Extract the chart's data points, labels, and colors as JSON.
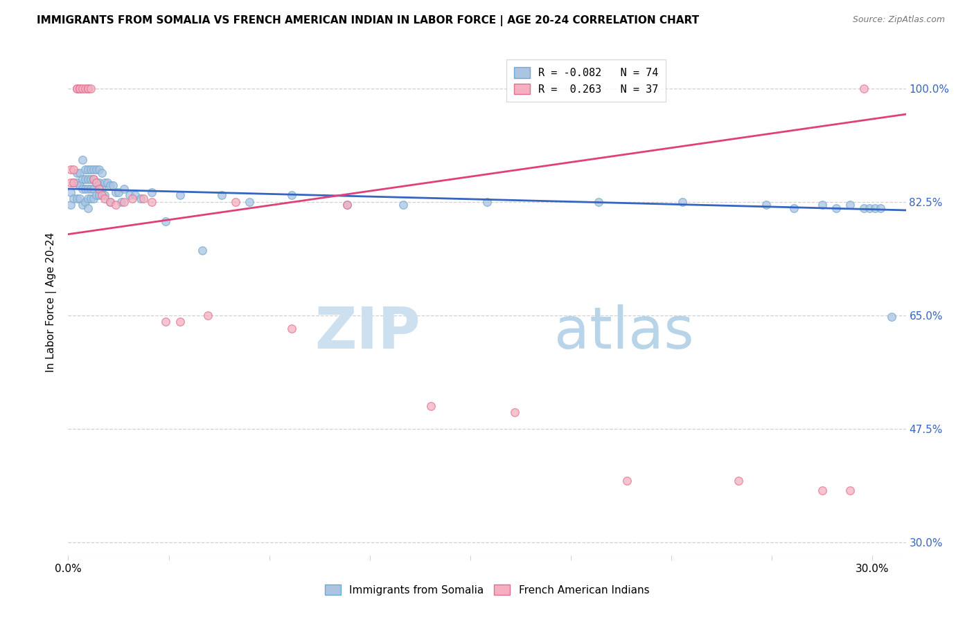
{
  "title": "IMMIGRANTS FROM SOMALIA VS FRENCH AMERICAN INDIAN IN LABOR FORCE | AGE 20-24 CORRELATION CHART",
  "source": "Source: ZipAtlas.com",
  "ylabel": "In Labor Force | Age 20-24",
  "yticks": [
    "100.0%",
    "82.5%",
    "65.0%",
    "47.5%",
    "30.0%"
  ],
  "ytick_vals": [
    1.0,
    0.825,
    0.65,
    0.475,
    0.3
  ],
  "xmin": 0.0,
  "xmax": 0.3,
  "ymin": 0.28,
  "ymax": 1.06,
  "legend_r1": "R = -0.082",
  "legend_n1": "N = 74",
  "legend_r2": "R =  0.263",
  "legend_n2": "N = 37",
  "somalia_color": "#aac4e2",
  "somalia_edge": "#6fa8d0",
  "french_color": "#f5afc0",
  "french_edge": "#e07090",
  "line_somalia": "#3565c0",
  "line_french": "#e0407a",
  "watermark_color": "#cde0f0",
  "label_somalia": "Immigrants from Somalia",
  "label_french": "French American Indians",
  "somalia_x": [
    0.001,
    0.001,
    0.002,
    0.002,
    0.003,
    0.003,
    0.003,
    0.004,
    0.004,
    0.004,
    0.005,
    0.005,
    0.005,
    0.005,
    0.006,
    0.006,
    0.006,
    0.006,
    0.007,
    0.007,
    0.007,
    0.007,
    0.007,
    0.008,
    0.008,
    0.008,
    0.008,
    0.009,
    0.009,
    0.009,
    0.009,
    0.01,
    0.01,
    0.01,
    0.011,
    0.011,
    0.011,
    0.012,
    0.012,
    0.013,
    0.013,
    0.014,
    0.015,
    0.015,
    0.016,
    0.017,
    0.018,
    0.019,
    0.02,
    0.022,
    0.024,
    0.026,
    0.03,
    0.035,
    0.04,
    0.048,
    0.055,
    0.065,
    0.08,
    0.1,
    0.12,
    0.15,
    0.19,
    0.22,
    0.25,
    0.26,
    0.27,
    0.275,
    0.28,
    0.285,
    0.287,
    0.289,
    0.291,
    0.295
  ],
  "somalia_y": [
    0.84,
    0.82,
    0.855,
    0.83,
    0.87,
    0.855,
    0.83,
    0.87,
    0.85,
    0.83,
    0.89,
    0.86,
    0.845,
    0.82,
    0.875,
    0.86,
    0.845,
    0.825,
    0.875,
    0.86,
    0.845,
    0.83,
    0.815,
    0.875,
    0.86,
    0.845,
    0.83,
    0.875,
    0.86,
    0.845,
    0.83,
    0.875,
    0.855,
    0.835,
    0.875,
    0.855,
    0.835,
    0.87,
    0.845,
    0.855,
    0.835,
    0.855,
    0.85,
    0.825,
    0.85,
    0.84,
    0.84,
    0.825,
    0.845,
    0.835,
    0.835,
    0.83,
    0.84,
    0.795,
    0.835,
    0.75,
    0.835,
    0.825,
    0.835,
    0.82,
    0.82,
    0.825,
    0.825,
    0.825,
    0.82,
    0.815,
    0.82,
    0.815,
    0.82,
    0.815,
    0.815,
    0.815,
    0.815,
    0.648
  ],
  "french_x": [
    0.001,
    0.001,
    0.002,
    0.002,
    0.003,
    0.003,
    0.004,
    0.004,
    0.005,
    0.006,
    0.007,
    0.007,
    0.008,
    0.009,
    0.01,
    0.011,
    0.012,
    0.013,
    0.015,
    0.017,
    0.02,
    0.023,
    0.027,
    0.03,
    0.035,
    0.04,
    0.05,
    0.06,
    0.08,
    0.1,
    0.13,
    0.16,
    0.2,
    0.24,
    0.27,
    0.28,
    0.285
  ],
  "french_y": [
    0.875,
    0.855,
    0.875,
    0.855,
    1.0,
    1.0,
    1.0,
    1.0,
    1.0,
    1.0,
    1.0,
    1.0,
    1.0,
    0.86,
    0.855,
    0.845,
    0.835,
    0.83,
    0.825,
    0.82,
    0.825,
    0.83,
    0.83,
    0.825,
    0.64,
    0.64,
    0.65,
    0.825,
    0.63,
    0.82,
    0.51,
    0.5,
    0.395,
    0.395,
    0.38,
    0.38,
    1.0
  ],
  "somalia_line_x": [
    0.0,
    0.3
  ],
  "somalia_line_y": [
    0.845,
    0.812
  ],
  "french_line_x": [
    0.0,
    0.3
  ],
  "french_line_y": [
    0.775,
    0.96
  ],
  "xtick_positions": [
    0.0,
    0.036,
    0.072,
    0.108,
    0.144,
    0.18,
    0.216,
    0.252,
    0.288
  ]
}
